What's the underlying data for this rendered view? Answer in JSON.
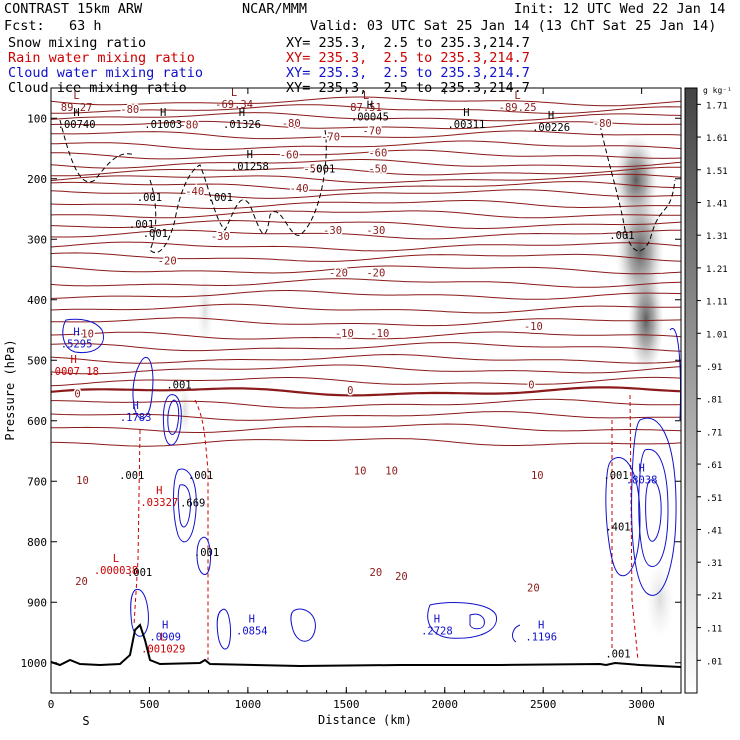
{
  "header": {
    "model": "CONTRAST 15km ARW",
    "org": "NCAR/MMM",
    "init": "Init: 12 UTC Wed 22 Jan 14",
    "fcst": "Fcst:   63 h",
    "valid": "Valid: 03 UTC Sat 25 Jan 14 (13 ChT Sat 25 Jan 14)",
    "fields": [
      {
        "name": "Snow mixing ratio",
        "xy": "XY= 235.3,  2.5 to 235.3,214.7",
        "color": "#000000"
      },
      {
        "name": "Rain water mixing ratio",
        "xy": "XY= 235.3,  2.5 to 235.3,214.7",
        "color": "#cc0000"
      },
      {
        "name": "Cloud water mixing ratio",
        "xy": "XY= 235.3,  2.5 to 235.3,214.7",
        "color": "#1010cc"
      },
      {
        "name": "Cloud ice mixing ratio",
        "xy": "XY= 235.3,  2.5 to 235.3,214.7",
        "color": "#000000"
      }
    ]
  },
  "chart_data": {
    "type": "cross-section contour",
    "xlabel": "Distance (km)",
    "ylabel": "Pressure (hPa)",
    "xlim": [
      0,
      3200
    ],
    "ylim": [
      1050,
      50
    ],
    "x_ticks": [
      0,
      500,
      1000,
      1500,
      2000,
      2500,
      3000
    ],
    "y_ticks": [
      100,
      200,
      300,
      400,
      500,
      600,
      700,
      800,
      900,
      1000
    ],
    "end_labels": {
      "left": "S",
      "right": "N"
    },
    "colorbar": {
      "unit": "g kg⁻¹",
      "levels": [
        ".01",
        ".11",
        ".21",
        ".31",
        ".41",
        ".51",
        ".61",
        ".71",
        ".81",
        ".91",
        "1.01",
        "1.11",
        "1.21",
        "1.31",
        "1.41",
        "1.51",
        "1.61",
        "1.71"
      ]
    },
    "temperature_labels": [
      {
        "text": "-80",
        "x": 400,
        "p": 85
      },
      {
        "text": "-80",
        "x": 1220,
        "p": 108
      },
      {
        "text": "-80",
        "x": 2800,
        "p": 108
      },
      {
        "text": "-80",
        "x": 700,
        "p": 110
      },
      {
        "text": "-70",
        "x": 1420,
        "p": 130
      },
      {
        "text": "-70",
        "x": 1630,
        "p": 120
      },
      {
        "text": "-60",
        "x": 1210,
        "p": 160
      },
      {
        "text": "-60",
        "x": 1660,
        "p": 157
      },
      {
        "text": "-50",
        "x": 1330,
        "p": 183
      },
      {
        "text": "-50",
        "x": 1660,
        "p": 183
      },
      {
        "text": "-40",
        "x": 1260,
        "p": 215
      },
      {
        "text": "-40",
        "x": 730,
        "p": 220
      },
      {
        "text": "-30",
        "x": 860,
        "p": 295
      },
      {
        "text": "-30",
        "x": 1430,
        "p": 285
      },
      {
        "text": "-30",
        "x": 1650,
        "p": 285
      },
      {
        "text": "-20",
        "x": 590,
        "p": 335
      },
      {
        "text": "-20",
        "x": 1460,
        "p": 355
      },
      {
        "text": "-20",
        "x": 1650,
        "p": 355
      },
      {
        "text": "-10",
        "x": 170,
        "p": 456
      },
      {
        "text": "-10",
        "x": 1490,
        "p": 455
      },
      {
        "text": "-10",
        "x": 1670,
        "p": 455
      },
      {
        "text": "-10",
        "x": 2450,
        "p": 443
      },
      {
        "text": "0",
        "x": 135,
        "p": 555
      },
      {
        "text": "0",
        "x": 1520,
        "p": 549
      },
      {
        "text": "0",
        "x": 2440,
        "p": 540
      },
      {
        "text": "10",
        "x": 160,
        "p": 698
      },
      {
        "text": "10",
        "x": 1570,
        "p": 682
      },
      {
        "text": "10",
        "x": 1730,
        "p": 682
      },
      {
        "text": "10",
        "x": 2470,
        "p": 690
      },
      {
        "text": "20",
        "x": 155,
        "p": 865
      },
      {
        "text": "20",
        "x": 1650,
        "p": 850
      },
      {
        "text": "20",
        "x": 1780,
        "p": 857
      },
      {
        "text": "20",
        "x": 2450,
        "p": 876
      }
    ],
    "extrema": [
      {
        "kind": "L",
        "value": "89.27",
        "x": 130,
        "p": 85,
        "field": "snow"
      },
      {
        "kind": "L",
        "value": "-69.34",
        "x": 930,
        "p": 80,
        "field": "snow"
      },
      {
        "kind": "L",
        "value": "87.51",
        "x": 1600,
        "p": 85,
        "field": "snow"
      },
      {
        "kind": "L",
        "value": "-89.25",
        "x": 2370,
        "p": 85,
        "field": "snow"
      },
      {
        "kind": "H",
        "value": ".00740",
        "x": 130,
        "p": 113,
        "field": "ice"
      },
      {
        "kind": "H",
        "value": ".01003",
        "x": 570,
        "p": 113,
        "field": "ice"
      },
      {
        "kind": "H",
        "value": ".01326",
        "x": 970,
        "p": 113,
        "field": "ice"
      },
      {
        "kind": "H",
        "value": ".00045",
        "x": 1620,
        "p": 100,
        "field": "ice"
      },
      {
        "kind": "H",
        "value": ".00311",
        "x": 2110,
        "p": 113,
        "field": "ice"
      },
      {
        "kind": "H",
        "value": ".00226",
        "x": 2540,
        "p": 118,
        "field": "ice"
      },
      {
        "kind": "H",
        "value": ".01258",
        "x": 1010,
        "p": 182,
        "field": "ice"
      },
      {
        "kind": "H",
        "value": ".5295",
        "x": 130,
        "p": 476,
        "field": "cloud"
      },
      {
        "kind": "H",
        "value": ".0007 18",
        "x": 115,
        "p": 521,
        "field": "rain"
      },
      {
        "kind": "H",
        "value": ".1783",
        "x": 430,
        "p": 597,
        "field": "cloud"
      },
      {
        "kind": "H",
        "value": ".03327",
        "x": 550,
        "p": 738,
        "field": "rain"
      },
      {
        "kind": "H",
        "value": ".8038",
        "x": 3000,
        "p": 700,
        "field": "cloud"
      },
      {
        "kind": "L",
        "value": ".000038",
        "x": 330,
        "p": 850,
        "field": "rain"
      },
      {
        "kind": "H",
        "value": ".0909",
        "x": 580,
        "p": 960,
        "field": "cloud"
      },
      {
        "kind": "L",
        "value": ".001029",
        "x": 570,
        "p": 980,
        "field": "rain"
      },
      {
        "kind": "H",
        "value": ".0854",
        "x": 1020,
        "p": 950,
        "field": "cloud"
      },
      {
        "kind": "H",
        "value": ".2728",
        "x": 1960,
        "p": 950,
        "field": "cloud"
      },
      {
        "kind": "H",
        "value": ".1196",
        "x": 2490,
        "p": 960,
        "field": "cloud"
      }
    ],
    "contour_labels": [
      {
        "text": ".001",
        "x": 1380,
        "p": 183
      },
      {
        "text": ".001",
        "x": 500,
        "p": 230
      },
      {
        "text": ".001",
        "x": 860,
        "p": 230
      },
      {
        "text": ".001",
        "x": 460,
        "p": 275
      },
      {
        "text": ".001",
        "x": 530,
        "p": 290
      },
      {
        "text": ".001",
        "x": 2900,
        "p": 293
      },
      {
        "text": ".001",
        "x": 650,
        "p": 540
      },
      {
        "text": ".001",
        "x": 410,
        "p": 690
      },
      {
        "text": ".001",
        "x": 760,
        "p": 690
      },
      {
        "text": ".001",
        "x": 2870,
        "p": 690
      },
      {
        "text": ".669",
        "x": 720,
        "p": 735
      },
      {
        "text": ".001",
        "x": 790,
        "p": 817
      },
      {
        "text": ".001",
        "x": 450,
        "p": 850
      },
      {
        "text": ".401",
        "x": 2880,
        "p": 775
      },
      {
        "text": ".001",
        "x": 2880,
        "p": 985
      }
    ]
  }
}
